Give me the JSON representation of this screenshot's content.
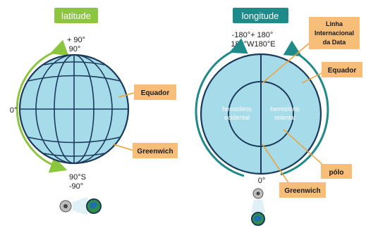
{
  "colors": {
    "globe_fill": "#a6dbe9",
    "globe_stroke": "#1b3a5c",
    "latitude_accent": "#8cc63e",
    "longitude_accent": "#1f8a8a",
    "callout_fill": "#f7be7a",
    "callout_line": "#f2a033"
  },
  "latitude": {
    "title": "latitude",
    "top_label_1": "+ 90°",
    "top_label_2": "90°",
    "left_label": "0°",
    "bottom_label_1": "90°S",
    "bottom_label_2": "-90°",
    "callouts": [
      "Equador",
      "Greenwich"
    ],
    "icon": "eye-camera-globe-icon"
  },
  "longitude": {
    "title": "longitude",
    "top_label_1": "-180°+ 180°",
    "top_label_2": "180°W180°E",
    "bottom_label": "0°",
    "hemisphere_west_1": "hemisfério",
    "hemisphere_west_2": "ocidental",
    "hemisphere_east_1": "hemisfério",
    "hemisphere_east_2": "oriental",
    "callouts": {
      "date_line_1": "Linha",
      "date_line_2": "Internacional",
      "date_line_3": "da Data",
      "equator": "Equador",
      "pole": "pólo",
      "greenwich": "Greenwich"
    },
    "icon": "eye-camera-globe-icon"
  }
}
